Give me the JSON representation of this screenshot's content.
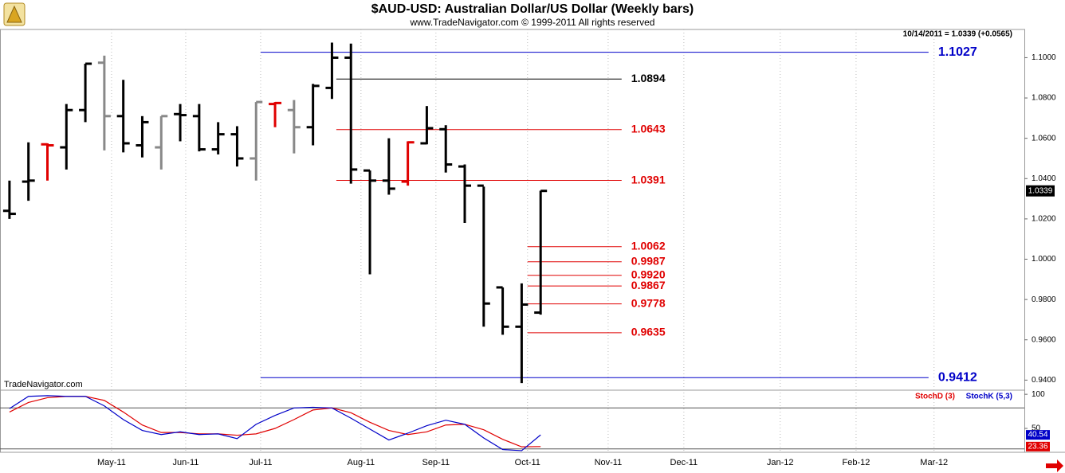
{
  "chart_data": [
    {
      "type": "ohlc",
      "title": "$AUD-USD:  Australian Dollar/US Dollar  (Weekly bars)",
      "subtitle": "www.TradeNavigator.com © 1999-2011 All rights reserved",
      "header_note": "10/14/2011 = 1.0339 (+0.0565)",
      "watermark": "TradeNavigator.com",
      "open": [
        1.024,
        1.0385,
        1.057,
        1.0555,
        1.074,
        1.0975,
        1.071,
        1.0565,
        1.0555,
        1.072,
        1.071,
        1.0545,
        1.062,
        1.05,
        1.077,
        1.074,
        1.0655,
        1.085,
        1.1,
        1.044,
        1.039,
        1.0385,
        1.0575,
        1.0645,
        1.046,
        1.0365,
        0.986,
        0.9665,
        0.9735
      ],
      "high": [
        1.039,
        1.058,
        1.0575,
        1.077,
        1.097,
        1.101,
        1.089,
        1.071,
        1.071,
        1.077,
        1.077,
        1.068,
        1.066,
        1.078,
        1.078,
        1.079,
        1.087,
        1.1075,
        1.107,
        1.044,
        1.06,
        1.0585,
        1.076,
        1.0665,
        1.047,
        1.036,
        0.986,
        0.988,
        1.034
      ],
      "low": [
        1.02,
        1.029,
        1.039,
        1.0445,
        1.068,
        1.054,
        1.053,
        1.0505,
        1.0445,
        1.0585,
        1.0535,
        1.052,
        1.046,
        1.039,
        1.0655,
        1.0525,
        1.0565,
        1.0795,
        1.0375,
        0.9925,
        1.032,
        1.0365,
        1.057,
        1.043,
        1.018,
        0.9665,
        0.9625,
        0.9385,
        0.9725
      ],
      "close": [
        1.0225,
        1.039,
        1.0565,
        1.074,
        1.097,
        1.071,
        1.0575,
        1.068,
        1.071,
        1.0715,
        1.0545,
        1.062,
        1.05,
        1.078,
        1.0775,
        1.0655,
        1.086,
        1.1,
        1.0445,
        1.039,
        1.035,
        1.058,
        1.065,
        1.047,
        1.0365,
        0.978,
        0.9665,
        0.9775,
        1.0339
      ],
      "colors": [
        "#000000",
        "#000000",
        "#e00000",
        "#000000",
        "#000000",
        "#888888",
        "#000000",
        "#000000",
        "#888888",
        "#000000",
        "#000000",
        "#000000",
        "#000000",
        "#888888",
        "#e00000",
        "#888888",
        "#000000",
        "#000000",
        "#000000",
        "#000000",
        "#000000",
        "#e00000",
        "#000000",
        "#000000",
        "#000000",
        "#000000",
        "#000000",
        "#000000",
        "#000000"
      ],
      "ylim": [
        0.935,
        1.114
      ],
      "yticks": [
        {
          "value": 0.94,
          "label": "0.9400"
        },
        {
          "value": 0.96,
          "label": "0.9600"
        },
        {
          "value": 0.98,
          "label": "0.9800"
        },
        {
          "value": 1.0,
          "label": "1.0000"
        },
        {
          "value": 1.02,
          "label": "1.0200"
        },
        {
          "value": 1.04,
          "label": "1.0400"
        },
        {
          "value": 1.06,
          "label": "1.0600"
        },
        {
          "value": 1.08,
          "label": "1.0800"
        },
        {
          "value": 1.1,
          "label": "1.1000"
        }
      ],
      "xlim": [
        -0.5,
        53.5
      ],
      "xticks": [
        {
          "value": 5.38,
          "label": "May-11"
        },
        {
          "value": 9.29,
          "label": "Jun-11"
        },
        {
          "value": 13.24,
          "label": "Jul-11"
        },
        {
          "value": 18.53,
          "label": "Aug-11"
        },
        {
          "value": 22.48,
          "label": "Sep-11"
        },
        {
          "value": 27.31,
          "label": "Oct-11"
        },
        {
          "value": 31.56,
          "label": "Nov-11"
        },
        {
          "value": 35.55,
          "label": "Dec-11"
        },
        {
          "value": 40.63,
          "label": "Jan-12"
        },
        {
          "value": 44.63,
          "label": "Feb-12"
        },
        {
          "value": 48.74,
          "label": "Mar-12"
        }
      ],
      "levels": [
        {
          "value": 1.1027,
          "label": "1.1027",
          "color": "#0000c8",
          "x": [
            13.24,
            48.45
          ]
        },
        {
          "value": 1.0894,
          "label": "1.0894",
          "color": "#000000",
          "x": [
            17.23,
            32.27
          ]
        },
        {
          "value": 1.0643,
          "label": "1.0643",
          "color": "#e00000",
          "x": [
            17.23,
            32.27
          ]
        },
        {
          "value": 1.0391,
          "label": "1.0391",
          "color": "#e00000",
          "x": [
            17.23,
            32.27
          ]
        },
        {
          "value": 1.0062,
          "label": "1.0062",
          "color": "#e00000",
          "x": [
            27.31,
            32.27
          ]
        },
        {
          "value": 0.9987,
          "label": "0.9987",
          "color": "#e00000",
          "x": [
            27.31,
            32.27
          ]
        },
        {
          "value": 0.992,
          "label": "0.9920",
          "color": "#e00000",
          "x": [
            27.31,
            32.27
          ]
        },
        {
          "value": 0.9867,
          "label": "0.9867",
          "color": "#e00000",
          "x": [
            27.31,
            32.27
          ]
        },
        {
          "value": 0.9778,
          "label": "0.9778",
          "color": "#e00000",
          "x": [
            27.31,
            32.27
          ]
        },
        {
          "value": 0.9635,
          "label": "0.9635",
          "color": "#e00000",
          "x": [
            27.31,
            32.27
          ]
        },
        {
          "value": 0.9412,
          "label": "0.9412",
          "color": "#0000c8",
          "x": [
            13.24,
            48.45
          ]
        }
      ]
    },
    {
      "type": "line",
      "series": [
        {
          "name": "StochD (3)",
          "color": "#e00000",
          "values": [
            74,
            88,
            95,
            97,
            97,
            91,
            74,
            55,
            44,
            44,
            42,
            42,
            40,
            42,
            50,
            63,
            77,
            80,
            73,
            59,
            47,
            41,
            45,
            55,
            56,
            48,
            34,
            23,
            23.36
          ]
        },
        {
          "name": "StochK (5,3)",
          "color": "#0000c8",
          "values": [
            79,
            97,
            98,
            97,
            97,
            83,
            63,
            47,
            41,
            45,
            41,
            42,
            35,
            56,
            69,
            80,
            81,
            80,
            65,
            49,
            33,
            43,
            54,
            62,
            56,
            36,
            19,
            17.4,
            40.54
          ]
        }
      ],
      "ylim": [
        15,
        106
      ],
      "yticks": [
        50,
        100
      ],
      "ref_lines": [
        80,
        20
      ]
    }
  ]
}
